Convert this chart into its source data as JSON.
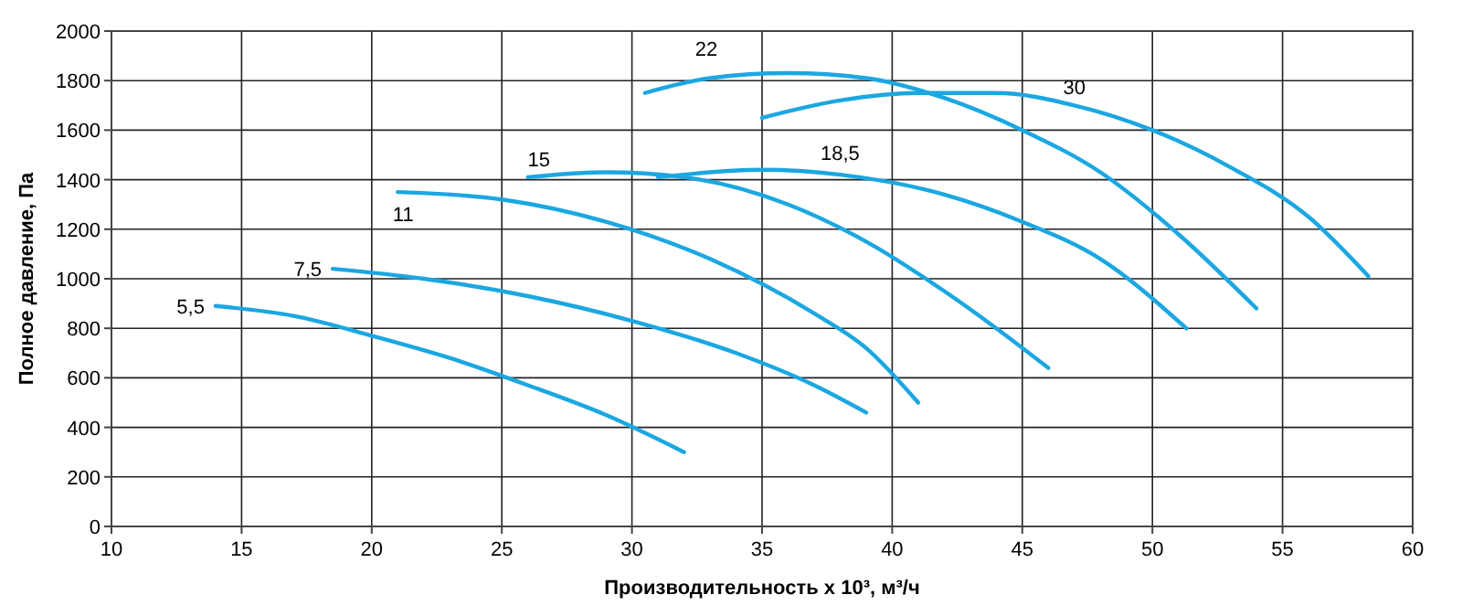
{
  "chart_data": {
    "type": "line",
    "xlabel": "Производительность x 10³, м³/ч",
    "ylabel": "Полное давление, Па",
    "xlim": [
      10,
      60
    ],
    "xticks": [
      10,
      15,
      20,
      25,
      30,
      35,
      40,
      45,
      50,
      55,
      60
    ],
    "ylim": [
      0,
      2000
    ],
    "yticks": [
      0,
      200,
      400,
      600,
      800,
      1000,
      1200,
      1400,
      1600,
      1800,
      2000
    ],
    "grid": true,
    "marker": "none",
    "line_style": "solid",
    "series": [
      {
        "name": "5,5",
        "color": "#1ba7e1",
        "x": [
          14,
          17,
          20,
          23,
          26,
          29,
          32
        ],
        "values": [
          890,
          850,
          770,
          680,
          570,
          450,
          300
        ]
      },
      {
        "name": "7,5",
        "color": "#1ba7e1",
        "x": [
          18.5,
          22,
          26,
          30,
          34,
          37,
          39
        ],
        "values": [
          1040,
          1000,
          930,
          830,
          700,
          570,
          460
        ]
      },
      {
        "name": "11",
        "color": "#1ba7e1",
        "x": [
          21,
          25,
          29,
          33,
          37,
          39,
          41
        ],
        "values": [
          1350,
          1320,
          1230,
          1080,
          860,
          720,
          500
        ]
      },
      {
        "name": "15",
        "color": "#1ba7e1",
        "x": [
          26,
          29,
          32,
          36,
          39,
          42,
          44,
          46
        ],
        "values": [
          1410,
          1430,
          1410,
          1300,
          1150,
          950,
          800,
          640
        ]
      },
      {
        "name": "18,5",
        "color": "#1ba7e1",
        "x": [
          31,
          35,
          38,
          42,
          45,
          48,
          51.3
        ],
        "values": [
          1410,
          1440,
          1420,
          1340,
          1230,
          1080,
          800
        ]
      },
      {
        "name": "22",
        "color": "#1ba7e1",
        "x": [
          30.5,
          33,
          36,
          39,
          42,
          45,
          48,
          51,
          54
        ],
        "values": [
          1750,
          1810,
          1830,
          1810,
          1730,
          1600,
          1430,
          1180,
          880
        ]
      },
      {
        "name": "30",
        "color": "#1ba7e1",
        "x": [
          35,
          38,
          41,
          44,
          47,
          50,
          53,
          56,
          58.3
        ],
        "values": [
          1650,
          1720,
          1750,
          1750,
          1700,
          1600,
          1450,
          1250,
          1010
        ]
      }
    ]
  }
}
